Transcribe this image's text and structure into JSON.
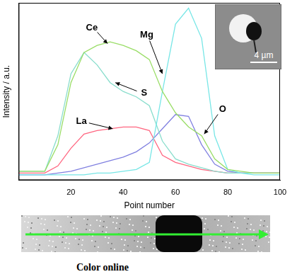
{
  "chart_data": {
    "type": "line",
    "x_label": "Point number",
    "y_label": "Intensity / a.u.",
    "x": [
      0,
      5,
      10,
      15,
      20,
      25,
      30,
      35,
      40,
      45,
      50,
      55,
      60,
      65,
      70,
      75,
      80,
      85,
      90,
      95,
      100
    ],
    "series": [
      {
        "name": "Ce",
        "color": "#99dd66",
        "values": [
          5,
          5,
          5,
          20,
          55,
          72,
          76,
          78,
          76,
          73,
          68,
          50,
          38,
          30,
          25,
          12,
          6,
          5,
          4,
          4,
          4
        ]
      },
      {
        "name": "Mg",
        "color": "#77e6e6",
        "values": [
          3,
          3,
          3,
          3,
          3,
          3,
          4,
          4,
          5,
          6,
          10,
          50,
          88,
          97,
          80,
          25,
          6,
          4,
          3,
          3,
          3
        ]
      },
      {
        "name": "S",
        "color": "#88ddcc",
        "values": [
          5,
          5,
          5,
          25,
          60,
          72,
          65,
          55,
          50,
          47,
          42,
          22,
          12,
          9,
          7,
          5,
          4,
          4,
          4,
          4,
          4
        ]
      },
      {
        "name": "La",
        "color": "#ff6680",
        "values": [
          4,
          4,
          4,
          8,
          18,
          26,
          28,
          29,
          30,
          30,
          28,
          14,
          10,
          8,
          6,
          5,
          4,
          4,
          4,
          4,
          4
        ]
      },
      {
        "name": "O",
        "color": "#8080e0",
        "values": [
          3,
          3,
          3,
          4,
          5,
          7,
          9,
          11,
          13,
          16,
          21,
          29,
          37,
          36,
          20,
          9,
          5,
          4,
          4,
          4,
          4
        ]
      }
    ],
    "xlim": [
      0,
      100
    ],
    "xticks": [
      20,
      40,
      60,
      80,
      100
    ],
    "ylim": [
      0,
      100
    ],
    "tick_labels": "x",
    "grid": false,
    "annotations": [
      {
        "text": "Ce",
        "x": 28,
        "y": 86,
        "arrow_x": 34,
        "arrow_y": 77
      },
      {
        "text": "Mg",
        "x": 49,
        "y": 82,
        "arrow_x": 55,
        "arrow_y": 60
      },
      {
        "text": "S",
        "x": 48,
        "y": 49,
        "arrow_x": 37,
        "arrow_y": 55
      },
      {
        "text": "La",
        "x": 24,
        "y": 33,
        "arrow_x": 36,
        "arrow_y": 29
      },
      {
        "text": "O",
        "x": 78,
        "y": 40,
        "arrow_x": 71,
        "arrow_y": 26
      }
    ]
  },
  "inset": {
    "scale_bar_label": "4 µm"
  },
  "caption": "Color online"
}
